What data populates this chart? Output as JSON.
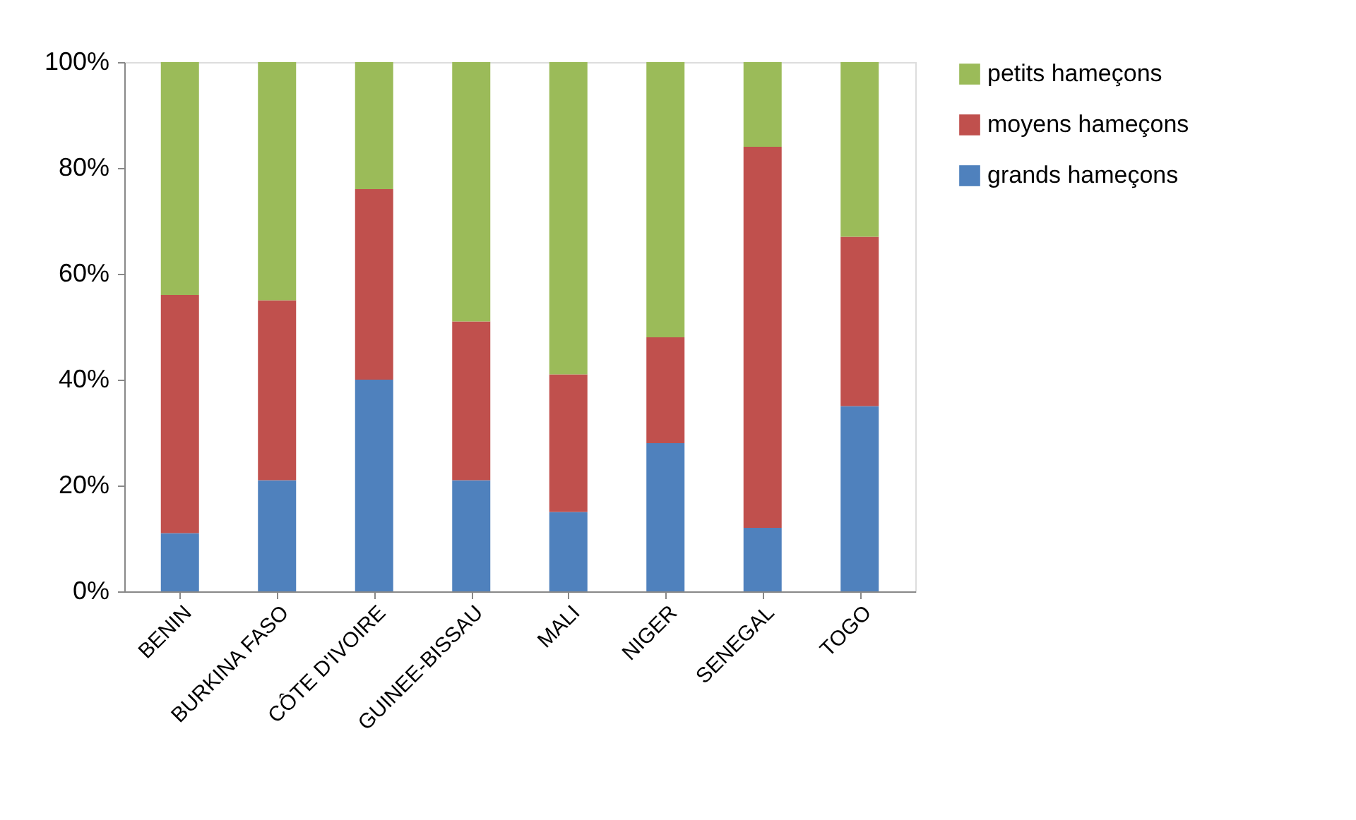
{
  "chart_data": {
    "type": "bar",
    "stacked": true,
    "categories": [
      "BENIN",
      "BURKINA  FASO",
      "CÔTE D'IVOIRE",
      "GUINEE-BISSAU",
      "MALI",
      "NIGER",
      "SENEGAL",
      "TOGO"
    ],
    "series": [
      {
        "name": "grands hameçons",
        "color": "#4f81bd",
        "values": [
          11,
          21,
          40,
          21,
          15,
          28,
          12,
          35
        ]
      },
      {
        "name": "moyens hameçons",
        "color": "#c0504d",
        "values": [
          45,
          34,
          36,
          30,
          26,
          20,
          72,
          32
        ]
      },
      {
        "name": "petits hameçons",
        "color": "#9bbb59",
        "values": [
          44,
          45,
          24,
          49,
          59,
          52,
          16,
          33
        ]
      }
    ],
    "ylim": [
      0,
      100
    ],
    "yticks": [
      {
        "value": 0,
        "label": "0%"
      },
      {
        "value": 20,
        "label": "20%"
      },
      {
        "value": 40,
        "label": "40%"
      },
      {
        "value": 60,
        "label": "60%"
      },
      {
        "value": 80,
        "label": "80%"
      },
      {
        "value": 100,
        "label": "100%"
      }
    ],
    "legend": "right",
    "grid": false
  }
}
